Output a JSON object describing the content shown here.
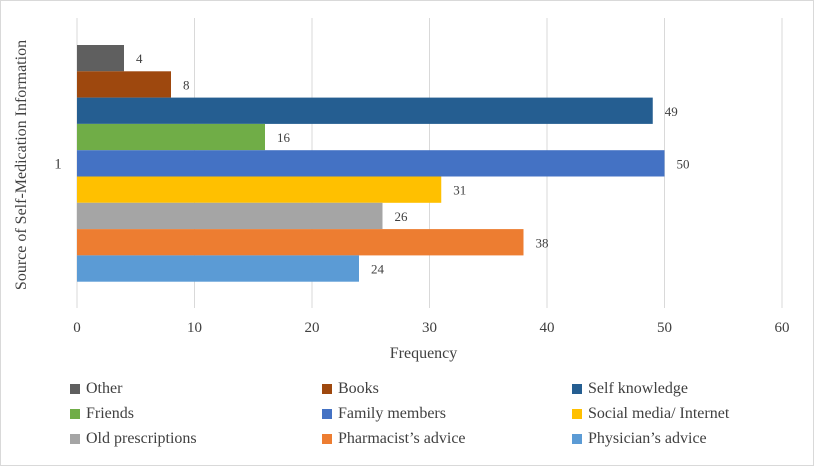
{
  "chart_data": {
    "type": "bar",
    "orientation": "horizontal",
    "title": "",
    "xlabel": "Frequency",
    "ylabel": "Source of Self-Medication  Information",
    "xlim": [
      0,
      60
    ],
    "x_ticks": [
      "0",
      "10",
      "20",
      "30",
      "40",
      "50",
      "60"
    ],
    "categories": [
      "1"
    ],
    "grid": "vertical",
    "legend_position": "bottom",
    "series": [
      {
        "name": "Other",
        "values": [
          4
        ],
        "label": "4",
        "color": "#5f5f5f"
      },
      {
        "name": "Books",
        "values": [
          8
        ],
        "label": "8",
        "color": "#9e480e"
      },
      {
        "name": "Self knowledge",
        "values": [
          49
        ],
        "label": "49",
        "color": "#255e91"
      },
      {
        "name": "Friends",
        "values": [
          16
        ],
        "label": "16",
        "color": "#70ad47"
      },
      {
        "name": "Family members",
        "values": [
          50
        ],
        "label": "50",
        "color": "#4472c4"
      },
      {
        "name": "Social media/ Internet",
        "values": [
          31
        ],
        "label": "31",
        "color": "#ffc000"
      },
      {
        "name": "Old prescriptions",
        "values": [
          26
        ],
        "label": "26",
        "color": "#a5a5a5"
      },
      {
        "name": "Pharmacist’s advice",
        "values": [
          38
        ],
        "label": "38",
        "color": "#ed7d31"
      },
      {
        "name": "Physician’s advice",
        "values": [
          24
        ],
        "label": "24",
        "color": "#5b9bd5"
      }
    ]
  }
}
